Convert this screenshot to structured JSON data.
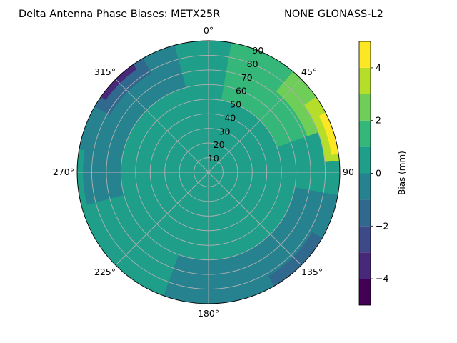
{
  "chart_data": {
    "type": "polar-contour",
    "title": "Delta Antenna Phase Biases: METX25R",
    "subtitle": "NONE GLONASS-L2",
    "angle_zero": "top",
    "angle_direction": "clockwise",
    "angle_ticks": [
      {
        "angle": 0,
        "label": "0°"
      },
      {
        "angle": 45,
        "label": "45°"
      },
      {
        "angle": 90,
        "label": "90"
      },
      {
        "angle": 135,
        "label": "135°"
      },
      {
        "angle": 180,
        "label": "180°"
      },
      {
        "angle": 225,
        "label": "225°"
      },
      {
        "angle": 270,
        "label": "270°"
      },
      {
        "angle": 315,
        "label": "315°"
      }
    ],
    "radial_ticks": [
      10,
      20,
      30,
      40,
      50,
      60,
      70,
      80,
      90
    ],
    "radial_range": [
      0,
      90
    ],
    "grid": true,
    "colorbar": {
      "label": "Bias (mm)",
      "range": [
        -5,
        5
      ],
      "ticks": [
        -4,
        -2,
        0,
        2,
        4
      ],
      "levels": [
        -5,
        -4.375,
        -3.75,
        -3.125,
        -2.5,
        -1.875,
        -1.25,
        -0.625,
        0,
        0.625,
        1.25,
        1.875,
        2.5,
        3.125,
        3.75,
        4.375,
        5
      ],
      "band_colors": [
        "#440154",
        "#482878",
        "#3e4989",
        "#31688e",
        "#26828e",
        "#1f9e89",
        "#35b779",
        "#6ece58",
        "#b5de2b",
        "#fde725"
      ],
      "band_edges": [
        -5,
        -4,
        -3,
        -2,
        -1,
        0,
        1,
        2,
        3,
        4,
        5
      ]
    },
    "field_regions": [
      {
        "level": 0,
        "bias": 0.2,
        "points": [
          [
            0,
            0
          ],
          [
            360,
            90
          ]
        ],
        "kind": "background"
      },
      {
        "level": 1,
        "bias": -0.6,
        "kind": "sector",
        "az": [
          280,
          345
        ],
        "el": [
          60,
          90
        ]
      },
      {
        "level": 2,
        "bias": -1.5,
        "kind": "sector",
        "az": [
          300,
          330
        ],
        "el": [
          78,
          90
        ]
      },
      {
        "level": 3,
        "bias": -3.2,
        "kind": "sector",
        "az": [
          305,
          325
        ],
        "el": [
          86,
          90
        ]
      },
      {
        "level": 4,
        "bias": 1.2,
        "kind": "sector",
        "az": [
          10,
          70
        ],
        "el": [
          50,
          90
        ]
      },
      {
        "level": 5,
        "bias": 2.3,
        "kind": "sector",
        "az": [
          40,
          70
        ],
        "el": [
          72,
          90
        ]
      },
      {
        "level": 6,
        "bias": 3.4,
        "kind": "sector",
        "az": [
          55,
          85
        ],
        "el": [
          80,
          90
        ]
      },
      {
        "level": 7,
        "bias": 4.6,
        "kind": "sector",
        "az": [
          63,
          82
        ],
        "el": [
          85,
          90
        ]
      },
      {
        "level": 8,
        "bias": -0.8,
        "kind": "sector",
        "az": [
          100,
          200
        ],
        "el": [
          60,
          90
        ]
      },
      {
        "level": 9,
        "bias": -1.6,
        "kind": "sector",
        "az": [
          120,
          150
        ],
        "el": [
          82,
          90
        ]
      },
      {
        "level": 10,
        "bias": 0.8,
        "kind": "sector",
        "az": [
          200,
          270
        ],
        "el": [
          20,
          60
        ]
      },
      {
        "level": 11,
        "bias": -0.7,
        "kind": "sector",
        "az": [
          255,
          290
        ],
        "el": [
          60,
          80
        ]
      }
    ]
  }
}
